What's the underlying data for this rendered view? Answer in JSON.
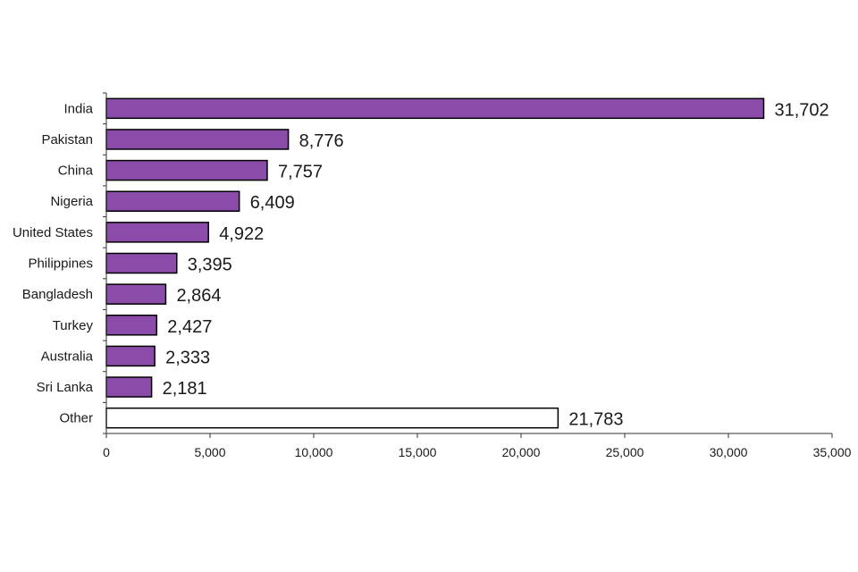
{
  "chart_data": {
    "type": "bar",
    "orientation": "horizontal",
    "categories": [
      "India",
      "Pakistan",
      "China",
      "Nigeria",
      "United States",
      "Philippines",
      "Bangladesh",
      "Turkey",
      "Australia",
      "Sri Lanka",
      "Other"
    ],
    "values": [
      31702,
      8776,
      7757,
      6409,
      4922,
      3395,
      2864,
      2427,
      2333,
      2181,
      21783
    ],
    "value_labels": [
      "31,702",
      "8,776",
      "7,757",
      "6,409",
      "4,922",
      "3,395",
      "2,864",
      "2,427",
      "2,333",
      "2,181",
      "21,783"
    ],
    "xlim": [
      0,
      35000
    ],
    "xticks": [
      0,
      5000,
      10000,
      15000,
      20000,
      25000,
      30000,
      35000
    ],
    "xtick_labels": [
      "0",
      "5,000",
      "10,000",
      "15,000",
      "20,000",
      "25,000",
      "30,000",
      "35,000"
    ],
    "title": "",
    "xlabel": "",
    "ylabel": "",
    "grid": false,
    "colors": {
      "bar_fill": "#8b4ba8",
      "other_fill": "#ffffff",
      "bar_stroke": "#000000",
      "axis": "#333333"
    }
  }
}
